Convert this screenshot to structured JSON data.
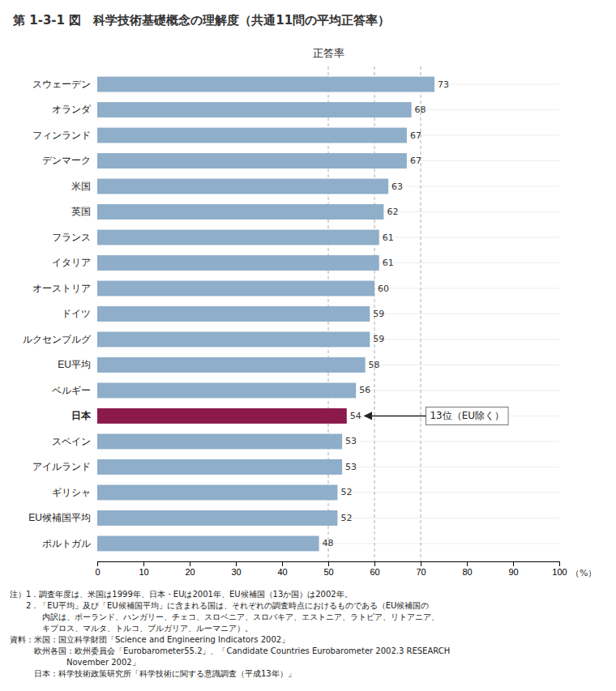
{
  "chart_data": {
    "type": "bar",
    "orientation": "horizontal",
    "title": "第 1-3-1 図　科学技術基礎概念の理解度（共通11問の平均正答率）",
    "xlabel": "正答率",
    "x_unit_label": "（%）",
    "categories": [
      "スウェーデン",
      "オランダ",
      "フィンランド",
      "デンマーク",
      "米国",
      "英国",
      "フランス",
      "イタリア",
      "オーストリア",
      "ドイツ",
      "ルクセンブルグ",
      "EU平均",
      "ベルギー",
      "日本",
      "スペイン",
      "アイルランド",
      "ギリシャ",
      "EU候補国平均",
      "ポルトガル"
    ],
    "values": [
      73,
      68,
      67,
      67,
      63,
      62,
      61,
      61,
      60,
      59,
      59,
      58,
      56,
      54,
      53,
      53,
      52,
      52,
      48
    ],
    "colors": [
      "#8eaec9",
      "#8eaec9",
      "#8eaec9",
      "#8eaec9",
      "#8eaec9",
      "#8eaec9",
      "#8eaec9",
      "#8eaec9",
      "#8eaec9",
      "#8eaec9",
      "#8eaec9",
      "#8eaec9",
      "#8eaec9",
      "#8b1a4a",
      "#8eaec9",
      "#8eaec9",
      "#8eaec9",
      "#8eaec9",
      "#8eaec9"
    ],
    "data_labels": true,
    "grid": true,
    "xlim": [
      0,
      100
    ],
    "xticks": [
      0,
      10,
      20,
      30,
      40,
      50,
      60,
      70,
      80,
      90,
      100
    ],
    "reference_lines": [
      50,
      60,
      70
    ],
    "annotations": [
      {
        "text": "13位（EU除く）",
        "category": "日本"
      }
    ],
    "notes": [
      "注）1．調査年度は、米国は1999年、日本・EUは2001年、EU候補国（13か国）は2002年。",
      "　　2．「EU平均」及び「EU候補国平均」に含まれる国は、それぞれの調査時点におけるものである（EU候補国の",
      "　　　　内訳は、ポーランド、ハンガリー、チェコ、スロベニア、スロバキア、エストニア、ラトビア、リトアニア、",
      "　　　　キプロス、マルタ、トルコ、ブルガリア、ルーマニア）。",
      "資料：米国：国立科学財団「Science and Engineering Indicators 2002」",
      "　　　欧州各国：欧州委員会「Eurobarometer55.2」、「Candidate Countries Eurobarometer 2002.3 RESEARCH",
      "　　　　　　　November 2002」",
      "　　　日本：科学技術政策研究所「科学技術に関する意識調査（平成13年）」"
    ]
  }
}
